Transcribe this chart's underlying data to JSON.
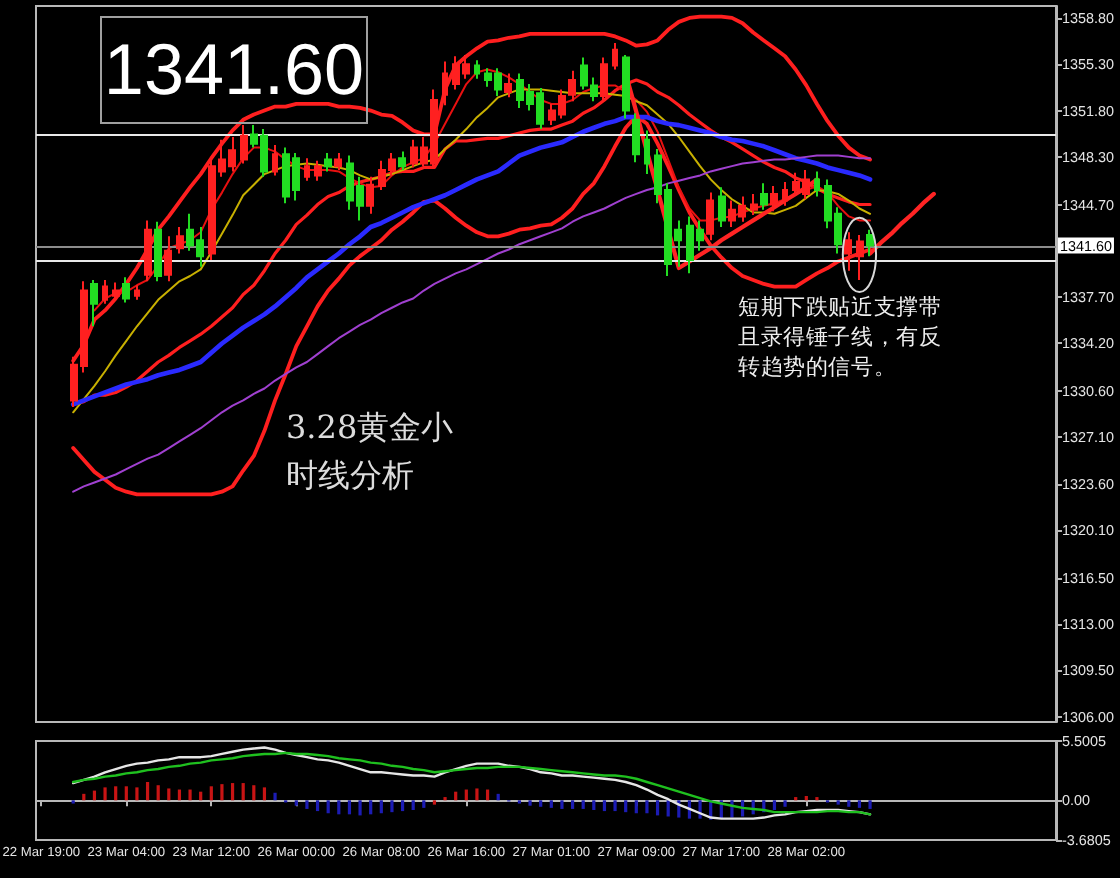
{
  "chart_data": [
    {
      "type": "candlestick",
      "categories": [
        null,
        null,
        null,
        null,
        null,
        null,
        null,
        null,
        null,
        null,
        null,
        null,
        null,
        null,
        null,
        null,
        null,
        null,
        null,
        null,
        null,
        null,
        null,
        null,
        null,
        null,
        null,
        null,
        null,
        null,
        null,
        null,
        null,
        null,
        null,
        null,
        null,
        null,
        null,
        null,
        null,
        null,
        null,
        null,
        null,
        null,
        null,
        null,
        null,
        null,
        null,
        null,
        null,
        null,
        null,
        null,
        null,
        null,
        null,
        null,
        null,
        null,
        null,
        null,
        null,
        null,
        null,
        null,
        null,
        null,
        null,
        null,
        null,
        null,
        null,
        null,
        null,
        null,
        null,
        null,
        null,
        null,
        null,
        null,
        null,
        null,
        null,
        null,
        null,
        null,
        null,
        null,
        null,
        null,
        null,
        null
      ],
      "ohlc": [
        null,
        null,
        null,
        [
          1329.9,
          1333.2,
          1329.4,
          1332.6
        ],
        [
          1332.5,
          1338.9,
          1332.0,
          1338.2
        ],
        [
          1338.7,
          1339.0,
          1335.5,
          1337.2
        ],
        [
          1337.5,
          1339.0,
          1337.2,
          1338.5
        ],
        [
          1337.8,
          1338.8,
          1337.5,
          1338.2
        ],
        [
          1338.7,
          1339.2,
          1337.3,
          1337.6
        ],
        [
          1337.8,
          1338.6,
          1337.5,
          1338.2
        ],
        [
          1339.4,
          1343.5,
          1338.9,
          1342.8
        ],
        [
          1342.8,
          1343.4,
          1338.9,
          1339.3
        ],
        [
          1339.4,
          1342.3,
          1338.9,
          1341.2
        ],
        [
          1341.4,
          1343.0,
          1341.0,
          1342.3
        ],
        [
          1342.8,
          1344.0,
          1341.2,
          1341.6
        ],
        [
          1342.0,
          1343.0,
          1340.0,
          1340.8
        ],
        [
          1341.0,
          1348.3,
          1340.5,
          1347.6
        ],
        [
          1347.2,
          1349.6,
          1346.8,
          1348.1
        ],
        [
          1347.6,
          1349.8,
          1347.2,
          1348.8
        ],
        [
          1348.1,
          1350.7,
          1347.8,
          1349.9
        ],
        [
          1350.0,
          1350.7,
          1349.0,
          1349.3
        ],
        [
          1349.9,
          1350.4,
          1346.8,
          1347.2
        ],
        [
          1347.2,
          1349.2,
          1346.9,
          1348.5
        ],
        [
          1348.5,
          1349.0,
          1344.8,
          1345.3
        ],
        [
          1348.2,
          1348.6,
          1345.0,
          1345.8
        ],
        [
          1346.8,
          1348.2,
          1346.5,
          1347.6
        ],
        [
          1346.9,
          1348.0,
          1346.5,
          1347.6
        ],
        [
          1348.1,
          1348.6,
          1347.2,
          1347.6
        ],
        [
          1347.6,
          1348.6,
          1347.3,
          1348.1
        ],
        [
          1347.8,
          1348.4,
          1344.3,
          1345.0
        ],
        [
          1346.1,
          1346.8,
          1343.5,
          1344.6
        ],
        [
          1344.6,
          1346.8,
          1344.0,
          1346.2
        ],
        [
          1346.1,
          1348.0,
          1345.8,
          1347.3
        ],
        [
          1347.3,
          1348.6,
          1346.9,
          1348.1
        ],
        [
          1348.2,
          1348.7,
          1347.3,
          1347.6
        ],
        [
          1347.8,
          1349.6,
          1347.5,
          1349.0
        ],
        [
          1347.8,
          1349.8,
          1347.6,
          1349.0
        ],
        [
          1347.8,
          1353.4,
          1347.5,
          1352.6
        ],
        [
          1353.0,
          1355.5,
          1352.2,
          1354.6
        ],
        [
          1353.8,
          1355.9,
          1353.4,
          1355.3
        ],
        [
          1354.6,
          1356.0,
          1354.2,
          1355.3
        ],
        [
          1355.2,
          1355.6,
          1354.2,
          1354.6
        ],
        [
          1354.6,
          1355.0,
          1353.6,
          1354.1
        ],
        [
          1354.6,
          1355.0,
          1352.9,
          1353.4
        ],
        [
          1353.2,
          1354.6,
          1352.8,
          1353.8
        ],
        [
          1354.1,
          1354.6,
          1352.0,
          1352.6
        ],
        [
          1353.2,
          1353.8,
          1351.8,
          1352.3
        ],
        [
          1353.1,
          1353.5,
          1350.4,
          1350.8
        ],
        [
          1351.1,
          1352.3,
          1350.7,
          1351.8
        ],
        [
          1351.5,
          1353.4,
          1351.2,
          1352.9
        ],
        [
          1353.0,
          1354.8,
          1352.5,
          1354.1
        ],
        [
          1355.2,
          1355.8,
          1353.4,
          1353.7
        ],
        [
          1353.7,
          1354.3,
          1352.5,
          1352.9
        ],
        [
          1352.9,
          1355.8,
          1352.6,
          1355.3
        ],
        [
          1355.2,
          1356.9,
          1354.9,
          1356.4
        ],
        [
          1355.8,
          1356.0,
          1351.2,
          1351.8
        ],
        [
          1351.1,
          1351.6,
          1347.9,
          1348.5
        ],
        [
          1349.6,
          1350.3,
          1347.0,
          1347.8
        ],
        [
          1348.4,
          1348.9,
          1344.8,
          1345.5
        ],
        [
          1345.8,
          1346.3,
          1339.3,
          1340.2
        ],
        [
          1342.8,
          1343.5,
          1340.0,
          1342.0
        ],
        [
          1343.1,
          1343.8,
          1339.5,
          1340.5
        ],
        [
          1342.8,
          1343.5,
          1341.2,
          1342.0
        ],
        [
          1342.5,
          1345.6,
          1342.0,
          1345.0
        ],
        [
          1345.3,
          1346.0,
          1343.0,
          1343.5
        ],
        [
          1343.5,
          1345.0,
          1343.0,
          1344.3
        ],
        [
          1343.8,
          1345.3,
          1343.4,
          1344.6
        ],
        [
          1344.3,
          1345.5,
          1343.9,
          1344.7
        ],
        [
          1345.5,
          1346.3,
          1344.3,
          1344.7
        ],
        [
          1344.7,
          1346.1,
          1344.2,
          1345.5
        ],
        [
          1345.0,
          1346.4,
          1344.6,
          1345.8
        ],
        [
          1345.8,
          1347.1,
          1345.4,
          1346.4
        ],
        [
          1345.5,
          1347.3,
          1345.1,
          1346.6
        ],
        [
          1346.6,
          1347.2,
          1345.3,
          1345.8
        ],
        [
          1346.1,
          1346.6,
          1342.9,
          1343.5
        ],
        [
          1344.0,
          1344.5,
          1341.0,
          1341.7
        ],
        [
          1341.0,
          1342.6,
          1339.7,
          1342.0
        ],
        [
          1340.8,
          1342.4,
          1339.0,
          1341.9
        ],
        [
          1342.4,
          1342.8,
          1340.8,
          1341.6
        ],
        null,
        null,
        null,
        null,
        null,
        null,
        null,
        null,
        null,
        null,
        null,
        null,
        null,
        null,
        null,
        null,
        null
      ],
      "colors": [
        null,
        null,
        null,
        "#ff2020",
        "#ff2020",
        "#22dd22",
        "#ff2020",
        "#ff2020",
        "#22dd22",
        "#ff2020",
        "#ff2020",
        "#22dd22",
        "#ff2020",
        "#ff2020",
        "#22dd22",
        "#22dd22",
        "#ff2020",
        "#ff2020",
        "#ff2020",
        "#ff2020",
        "#22dd22",
        "#22dd22",
        "#ff2020",
        "#22dd22",
        "#22dd22",
        "#ff2020",
        "#ff2020",
        "#22dd22",
        "#ff2020",
        "#22dd22",
        "#22dd22",
        "#ff2020",
        "#ff2020",
        "#ff2020",
        "#22dd22",
        "#ff2020",
        "#ff2020",
        "#ff2020",
        "#ff2020",
        "#ff2020",
        "#ff2020",
        "#22dd22",
        "#22dd22",
        "#22dd22",
        "#ff2020",
        "#22dd22",
        "#22dd22",
        "#22dd22",
        "#ff2020",
        "#ff2020",
        "#ff2020",
        "#22dd22",
        "#22dd22",
        "#ff2020",
        "#ff2020",
        "#22dd22",
        "#22dd22",
        "#22dd22",
        "#22dd22",
        "#22dd22",
        "#22dd22",
        "#22dd22",
        "#22dd22",
        "#ff2020",
        "#22dd22",
        "#ff2020",
        "#ff2020",
        "#ff2020",
        "#22dd22",
        "#ff2020",
        "#ff2020",
        "#ff2020",
        "#ff2020",
        "#22dd22",
        "#22dd22",
        "#22dd22",
        "#ff2020",
        "#ff2020",
        "#22dd22",
        null,
        null,
        null,
        null,
        null,
        null,
        null,
        null,
        null,
        null,
        null,
        null,
        null,
        null,
        null,
        null,
        null
      ],
      "ylim": [
        1305.6,
        1359.7
      ],
      "yticks": [
        {
          "value": 1306,
          "label": "1306.00"
        },
        {
          "value": 1309.5,
          "label": "1309.50"
        },
        {
          "value": 1313,
          "label": "1313.00"
        },
        {
          "value": 1316.5,
          "label": "1316.50"
        },
        {
          "value": 1320.1,
          "label": "1320.10"
        },
        {
          "value": 1323.6,
          "label": "1323.60"
        },
        {
          "value": 1327.1,
          "label": "1327.10"
        },
        {
          "value": 1330.6,
          "label": "1330.60"
        },
        {
          "value": 1334.2,
          "label": "1334.20"
        },
        {
          "value": 1337.7,
          "label": "1337.70"
        },
        {
          "value": 1344.7,
          "label": "1344.70"
        },
        {
          "value": 1348.3,
          "label": "1348.30"
        },
        {
          "value": 1351.8,
          "label": "1351.80"
        },
        {
          "value": 1355.3,
          "label": "1355.30"
        },
        {
          "value": 1358.8,
          "label": "1358.80"
        }
      ],
      "marker": "none",
      "series": [
        {
          "type": "line",
          "color": "#ff1f1f",
          "values": [
            null,
            null,
            null,
            1332.9,
            1334.1,
            1336.0,
            1336.7,
            1337.6,
            1338.7,
            1339.9,
            1341.3,
            1342.8,
            1343.8,
            1344.9,
            1346.0,
            1347.0,
            1348.2,
            1349.3,
            1350.3,
            1351.1,
            1351.5,
            1351.8,
            1352.1,
            1352.1,
            1352.3,
            1352.3,
            1352.3,
            1352.3,
            1352.1,
            1352.1,
            1352.0,
            1351.8,
            1351.5,
            1351.4,
            1350.9,
            1350.3,
            1350.0,
            1350.0,
            1353.4,
            1355.2,
            1355.9,
            1356.5,
            1357.0,
            1357.1,
            1357.3,
            1357.4,
            1357.6,
            1357.6,
            1357.6,
            1357.6,
            1357.6,
            1357.6,
            1357.6,
            1357.6,
            1357.4,
            1357.1,
            1356.7,
            1356.8,
            1357.1,
            1357.9,
            1358.5,
            1358.8,
            1358.9,
            1358.9,
            1358.9,
            1358.8,
            1358.4,
            1357.7,
            1357.1,
            1356.5,
            1355.9,
            1354.9,
            1353.7,
            1352.3,
            1351.0,
            1349.9,
            1349.0,
            1348.4,
            1348.1,
            null,
            null,
            null,
            null,
            null,
            null,
            null,
            null,
            null,
            null,
            null,
            null,
            null,
            null,
            null,
            null,
            null
          ]
        },
        {
          "type": "line",
          "color": "#ff1f1f",
          "values": [
            null,
            null,
            null,
            1329.6,
            1329.8,
            1330.3,
            1330.3,
            1330.5,
            1330.9,
            1331.4,
            1332.1,
            1332.8,
            1333.3,
            1333.9,
            1334.4,
            1334.9,
            1335.5,
            1336.2,
            1336.9,
            1337.9,
            1338.6,
            1339.7,
            1341.0,
            1342.0,
            1343.2,
            1343.9,
            1344.7,
            1345.3,
            1345.6,
            1346.1,
            1346.4,
            1346.6,
            1346.8,
            1347.1,
            1347.2,
            1347.2,
            1347.5,
            1347.5,
            1348.9,
            1349.5,
            1349.5,
            1349.6,
            1349.7,
            1349.7,
            1349.9,
            1350.1,
            1350.3,
            1350.4,
            1350.4,
            1350.7,
            1351.0,
            1351.6,
            1352.0,
            1352.6,
            1353.3,
            1353.8,
            1354.1,
            1353.8,
            1353.2,
            1352.8,
            1352.2,
            1351.5,
            1350.9,
            1350.3,
            1349.8,
            1349.4,
            1348.9,
            1348.4,
            1347.9,
            1347.5,
            1347.2,
            1346.7,
            1346.4,
            1345.9,
            1345.5,
            1345.2,
            1344.9,
            1344.7,
            1344.7,
            null,
            null,
            null,
            null,
            null,
            null,
            null,
            null,
            null,
            null,
            null,
            null,
            null,
            null,
            null,
            null,
            null
          ]
        },
        {
          "type": "line",
          "color": "#ff1f1f",
          "values": [
            null,
            null,
            null,
            1326.3,
            1325.4,
            1324.5,
            1323.9,
            1323.3,
            1323.0,
            1322.8,
            1322.8,
            1322.8,
            1322.8,
            1322.8,
            1322.8,
            1322.8,
            1322.8,
            1323.0,
            1323.4,
            1324.6,
            1325.7,
            1327.6,
            1329.9,
            1331.9,
            1334.0,
            1335.5,
            1337.0,
            1338.2,
            1339.1,
            1340.1,
            1340.8,
            1341.4,
            1342.0,
            1342.8,
            1343.4,
            1344.1,
            1344.9,
            1345.0,
            1344.4,
            1343.7,
            1343.1,
            1342.6,
            1342.3,
            1342.3,
            1342.5,
            1342.8,
            1342.9,
            1343.1,
            1343.2,
            1343.7,
            1344.4,
            1345.5,
            1346.3,
            1347.6,
            1349.1,
            1350.5,
            1351.4,
            1350.8,
            1349.3,
            1347.6,
            1345.8,
            1344.1,
            1342.8,
            1341.6,
            1340.7,
            1339.9,
            1339.3,
            1339.0,
            1338.7,
            1338.5,
            1338.5,
            1338.5,
            1339.0,
            1339.5,
            1339.9,
            1340.4,
            1340.7,
            1341.0,
            1341.3,
            null,
            null,
            null,
            null,
            null,
            null,
            null,
            null,
            null,
            null,
            null,
            null,
            null,
            null,
            null,
            null,
            null
          ]
        },
        {
          "type": "line",
          "color": "#e81010",
          "values": [
            null,
            null,
            null,
            null,
            null,
            1336.7,
            1337.6,
            1338.0,
            1338.1,
            1338.6,
            1339.0,
            1340.1,
            1341.4,
            1341.7,
            1342.0,
            1342.6,
            1344.3,
            1345.6,
            1347.0,
            1348.2,
            1349.0,
            1349.0,
            1348.7,
            1348.1,
            1347.6,
            1347.3,
            1347.3,
            1347.3,
            1347.2,
            1346.7,
            1346.3,
            1346.0,
            1346.1,
            1346.9,
            1347.5,
            1347.9,
            1348.2,
            1349.3,
            1350.8,
            1352.3,
            1353.8,
            1354.7,
            1354.9,
            1354.7,
            1354.3,
            1353.8,
            1353.2,
            1352.6,
            1352.3,
            1352.3,
            1352.6,
            1353.2,
            1353.5,
            1353.7,
            1353.7,
            1353.2,
            1352.6,
            1351.7,
            1350.2,
            1348.1,
            1346.0,
            1344.4,
            1343.5,
            1343.5,
            1343.7,
            1343.8,
            1344.1,
            1344.4,
            1344.6,
            1344.8,
            1345.1,
            1345.5,
            1345.8,
            1346.1,
            1345.6,
            1344.6,
            1343.8,
            1343.5,
            1343.5,
            null,
            null,
            null,
            null,
            null,
            null,
            null,
            null,
            null,
            null,
            null,
            null,
            null,
            null,
            null,
            null,
            null
          ]
        },
        {
          "type": "line",
          "color": "#c8b000",
          "values": [
            null,
            null,
            null,
            1329.0,
            1330.0,
            1331.0,
            1332.1,
            1333.3,
            1334.4,
            1335.5,
            1336.5,
            1337.5,
            1338.2,
            1338.9,
            1339.3,
            1339.8,
            1341.1,
            1342.5,
            1343.9,
            1345.4,
            1346.2,
            1347.0,
            1347.3,
            1347.6,
            1347.7,
            1347.8,
            1347.7,
            1347.6,
            1347.5,
            1347.3,
            1346.9,
            1346.6,
            1346.8,
            1347.0,
            1347.3,
            1347.6,
            1347.9,
            1348.1,
            1348.9,
            1349.6,
            1350.4,
            1351.3,
            1352.0,
            1352.8,
            1353.1,
            1353.4,
            1353.4,
            1353.4,
            1353.3,
            1353.2,
            1353.1,
            1353.1,
            1353.1,
            1353.1,
            1353.0,
            1352.9,
            1352.5,
            1352.2,
            1351.5,
            1350.8,
            1349.8,
            1348.7,
            1347.6,
            1346.6,
            1345.8,
            1345.1,
            1344.6,
            1344.1,
            1344.1,
            1344.0,
            1344.3,
            1344.6,
            1345.2,
            1345.8,
            1345.7,
            1345.5,
            1345.0,
            1344.4,
            1344.0,
            null,
            null,
            null,
            null,
            null,
            null,
            null,
            null,
            null,
            null,
            null,
            null,
            null,
            null,
            null,
            null,
            null
          ]
        },
        {
          "type": "line",
          "color": "#2a2aff",
          "values": [
            null,
            null,
            null,
            1329.6,
            1329.9,
            1330.2,
            1330.5,
            1330.8,
            1331.1,
            1331.3,
            1331.5,
            1331.8,
            1332.0,
            1332.2,
            1332.5,
            1332.8,
            1333.5,
            1334.2,
            1334.8,
            1335.4,
            1335.9,
            1336.4,
            1337.0,
            1337.7,
            1338.4,
            1339.2,
            1339.8,
            1340.4,
            1341.0,
            1341.7,
            1342.3,
            1343.0,
            1343.3,
            1343.7,
            1344.1,
            1344.5,
            1344.8,
            1345.1,
            1345.4,
            1345.8,
            1346.2,
            1346.6,
            1346.9,
            1347.2,
            1347.8,
            1348.4,
            1348.7,
            1349.0,
            1349.2,
            1349.4,
            1349.8,
            1350.2,
            1350.5,
            1350.8,
            1351.0,
            1351.3,
            1351.3,
            1351.3,
            1351.0,
            1350.8,
            1350.7,
            1350.5,
            1350.3,
            1350.1,
            1349.8,
            1349.6,
            1349.5,
            1349.3,
            1349.1,
            1348.8,
            1348.5,
            1348.2,
            1348.0,
            1347.8,
            1347.5,
            1347.3,
            1347.1,
            1346.9,
            1346.6,
            null,
            null,
            null,
            null,
            null,
            null,
            null,
            null,
            null,
            null,
            null,
            null,
            null,
            null,
            null,
            null,
            null
          ]
        },
        {
          "type": "line",
          "color": "#a040d0",
          "values": [
            null,
            null,
            null,
            1323.0,
            1323.4,
            1323.7,
            1324.0,
            1324.3,
            1324.7,
            1325.1,
            1325.5,
            1325.8,
            1326.3,
            1326.8,
            1327.3,
            1327.8,
            1328.4,
            1329.0,
            1329.5,
            1329.9,
            1330.4,
            1330.8,
            1331.4,
            1331.9,
            1332.4,
            1332.8,
            1333.4,
            1334.0,
            1334.6,
            1335.1,
            1335.6,
            1336.0,
            1336.5,
            1336.9,
            1337.3,
            1337.6,
            1338.2,
            1338.7,
            1339.1,
            1339.5,
            1339.8,
            1340.2,
            1340.6,
            1341.0,
            1341.3,
            1341.7,
            1342.0,
            1342.3,
            1342.6,
            1342.9,
            1343.4,
            1343.8,
            1344.1,
            1344.4,
            1344.8,
            1345.2,
            1345.5,
            1345.8,
            1346.0,
            1346.3,
            1346.5,
            1346.7,
            1346.9,
            1347.2,
            1347.4,
            1347.6,
            1347.8,
            1347.9,
            1348.0,
            1348.1,
            1348.1,
            1348.2,
            1348.3,
            1348.4,
            1348.4,
            1348.4,
            1348.3,
            1348.2,
            1348.2,
            null,
            null,
            null,
            null,
            null,
            null,
            null,
            null,
            null,
            null,
            null,
            null,
            null,
            null,
            null,
            null,
            null
          ]
        },
        {
          "type": "line",
          "color": "#ff2424",
          "values": [
            null,
            null,
            null,
            null,
            null,
            null,
            null,
            null,
            null,
            null,
            null,
            null,
            null,
            null,
            null,
            null,
            null,
            null,
            null,
            null,
            null,
            null,
            null,
            null,
            null,
            null,
            null,
            null,
            null,
            null,
            null,
            null,
            null,
            null,
            null,
            null,
            null,
            null,
            null,
            null,
            null,
            null,
            null,
            null,
            null,
            null,
            null,
            null,
            null,
            null,
            null,
            null,
            null,
            null,
            null,
            1354.6,
            1351.7,
            1348.7,
            1345.8,
            1342.8,
            1339.9,
            1340.4,
            1340.9,
            1341.4,
            1342.0,
            1342.5,
            1343.0,
            1343.5,
            1344.0,
            1344.5,
            1345.0,
            1345.5,
            1346.0,
            1346.6,
            null,
            null,
            null,
            null,
            1341.0,
            1341.8,
            1342.5,
            1343.3,
            1344.0,
            1344.8,
            1345.5,
            null,
            null,
            null,
            null,
            null,
            null,
            null,
            null,
            null,
            null,
            null
          ]
        }
      ],
      "ref_lines": [
        {
          "axis": "y",
          "value": 1350.0,
          "color": "#e8e8e8"
        },
        {
          "axis": "y",
          "value": 1341.6,
          "label": "1341.60",
          "color": "#8c8c8c"
        },
        {
          "axis": "y",
          "value": 1340.5,
          "color": "#e8e8e8"
        }
      ],
      "annotations": [
        "1341.60",
        "3.28黄金小时线分析",
        "短期下跌贴近支撑带且录得锤子线，有反转趋势的信号。"
      ]
    },
    {
      "type": "line",
      "categories": [
        "22 Mar 19:00",
        null,
        null,
        null,
        null,
        null,
        null,
        null,
        "23 Mar 04:00",
        null,
        null,
        null,
        null,
        null,
        null,
        null,
        "23 Mar 12:00",
        null,
        null,
        null,
        null,
        null,
        null,
        null,
        "26 Mar 00:00",
        null,
        null,
        null,
        null,
        null,
        null,
        null,
        "26 Mar 08:00",
        null,
        null,
        null,
        null,
        null,
        null,
        null,
        "26 Mar 16:00",
        null,
        null,
        null,
        null,
        null,
        null,
        null,
        "27 Mar 01:00",
        null,
        null,
        null,
        null,
        null,
        null,
        null,
        "27 Mar 09:00",
        null,
        null,
        null,
        null,
        null,
        null,
        null,
        "27 Mar 17:00",
        null,
        null,
        null,
        null,
        null,
        null,
        null,
        "28 Mar 02:00",
        null,
        null,
        null,
        null,
        null,
        null,
        null,
        null,
        null,
        null,
        null,
        null,
        null,
        null,
        null,
        null,
        null,
        null,
        null,
        null,
        null,
        null,
        null
      ],
      "ylim": [
        -3.6805,
        5.5005
      ],
      "yticks": [
        -3.6805,
        {
          "value": 0,
          "label": "0.00"
        },
        5.5005
      ],
      "marker": "none",
      "series": [
        {
          "type": "bar",
          "colors": [
            null,
            null,
            null,
            "#1c1cb4",
            "#c81414",
            "#c81414",
            "#c81414",
            "#c81414",
            "#c81414",
            "#c81414",
            "#c81414",
            "#c81414",
            "#c81414",
            "#c81414",
            "#c81414",
            "#c81414",
            "#c81414",
            "#c81414",
            "#c81414",
            "#c81414",
            "#c81414",
            "#c81414",
            "#1c1cb4",
            "#1c1cb4",
            "#1c1cb4",
            "#1c1cb4",
            "#1c1cb4",
            "#1c1cb4",
            "#1c1cb4",
            "#1c1cb4",
            "#1c1cb4",
            "#1c1cb4",
            "#1c1cb4",
            "#1c1cb4",
            "#1c1cb4",
            "#1c1cb4",
            "#1c1cb4",
            "#c81414",
            "#c81414",
            "#c81414",
            "#c81414",
            "#c81414",
            "#c81414",
            "#1c1cb4",
            "#1c1cb4",
            "#1c1cb4",
            "#1c1cb4",
            "#1c1cb4",
            "#1c1cb4",
            "#1c1cb4",
            "#1c1cb4",
            "#1c1cb4",
            "#1c1cb4",
            "#1c1cb4",
            "#1c1cb4",
            "#1c1cb4",
            "#1c1cb4",
            "#1c1cb4",
            "#1c1cb4",
            "#1c1cb4",
            "#1c1cb4",
            "#1c1cb4",
            "#1c1cb4",
            "#1c1cb4",
            "#1c1cb4",
            "#1c1cb4",
            "#1c1cb4",
            "#1c1cb4",
            "#1c1cb4",
            "#1c1cb4",
            "#1c1cb4",
            "#c81414",
            "#c81414",
            "#c81414",
            "#1c1cb4",
            "#1c1cb4",
            "#1c1cb4",
            "#1c1cb4",
            "#1c1cb4",
            null,
            null,
            null,
            null,
            null,
            null,
            null,
            null,
            null,
            null,
            null,
            null,
            null,
            null,
            null,
            null,
            null
          ],
          "values": [
            null,
            null,
            null,
            -0.3,
            0.6,
            0.9,
            1.2,
            1.3,
            1.3,
            1.2,
            1.7,
            1.4,
            1.1,
            1.0,
            1.0,
            0.8,
            1.3,
            1.5,
            1.6,
            1.6,
            1.4,
            1.2,
            0.7,
            -0.2,
            -0.5,
            -0.8,
            -1.0,
            -1.2,
            -1.3,
            -1.3,
            -1.4,
            -1.3,
            -1.2,
            -1.1,
            -1.0,
            -0.9,
            -0.7,
            -0.4,
            0.3,
            0.8,
            1.0,
            1.1,
            1.0,
            0.6,
            -0.1,
            -0.3,
            -0.5,
            -0.6,
            -0.7,
            -0.8,
            -0.8,
            -0.8,
            -0.9,
            -1.0,
            -1.0,
            -1.1,
            -1.2,
            -1.2,
            -1.4,
            -1.5,
            -1.6,
            -1.7,
            -1.7,
            -1.8,
            -1.7,
            -1.6,
            -1.5,
            -1.3,
            -1.1,
            -0.9,
            -0.6,
            0.3,
            0.4,
            0.3,
            -0.2,
            -0.4,
            -0.6,
            -0.7,
            -0.8,
            null,
            null,
            null,
            null,
            null,
            null,
            null,
            null,
            null,
            null,
            null,
            null,
            null,
            null,
            null,
            null,
            null
          ]
        },
        {
          "type": "line",
          "color": "#e6e6e6",
          "values": [
            null,
            null,
            null,
            1.6,
            1.9,
            2.2,
            2.6,
            2.9,
            3.2,
            3.4,
            3.5,
            3.7,
            3.8,
            4.0,
            4.0,
            4.0,
            4.1,
            4.3,
            4.5,
            4.7,
            4.8,
            4.9,
            4.7,
            4.4,
            4.2,
            4.0,
            3.8,
            3.7,
            3.5,
            3.2,
            2.9,
            2.6,
            2.6,
            2.5,
            2.4,
            2.3,
            2.3,
            2.2,
            2.6,
            2.9,
            3.2,
            3.4,
            3.4,
            3.4,
            3.2,
            3.1,
            2.9,
            2.6,
            2.5,
            2.3,
            2.3,
            2.2,
            2.1,
            2.0,
            1.9,
            1.7,
            1.4,
            1.0,
            0.5,
            0.1,
            -0.4,
            -0.8,
            -1.2,
            -1.6,
            -1.7,
            -1.7,
            -1.7,
            -1.7,
            -1.6,
            -1.4,
            -1.3,
            -1.1,
            -1.0,
            -0.9,
            -0.9,
            -0.9,
            -1.0,
            -1.1,
            -1.3,
            null,
            null,
            null,
            null,
            null,
            null,
            null,
            null,
            null,
            null,
            null,
            null,
            null,
            null,
            null,
            null,
            null
          ]
        },
        {
          "type": "line",
          "color": "#1fc01f",
          "values": [
            null,
            null,
            null,
            1.7,
            1.9,
            2.0,
            2.2,
            2.3,
            2.5,
            2.6,
            2.8,
            2.9,
            3.1,
            3.2,
            3.4,
            3.5,
            3.7,
            3.8,
            3.9,
            4.1,
            4.2,
            4.3,
            4.3,
            4.4,
            4.3,
            4.3,
            4.2,
            4.1,
            3.9,
            3.8,
            3.7,
            3.5,
            3.4,
            3.2,
            3.1,
            2.9,
            2.8,
            2.6,
            2.7,
            2.8,
            2.9,
            3.0,
            3.0,
            3.1,
            3.1,
            3.1,
            3.0,
            2.9,
            2.8,
            2.7,
            2.6,
            2.5,
            2.4,
            2.3,
            2.3,
            2.2,
            2.0,
            1.7,
            1.4,
            1.1,
            0.8,
            0.5,
            0.2,
            -0.1,
            -0.3,
            -0.5,
            -0.7,
            -0.8,
            -0.9,
            -1.1,
            -1.1,
            -1.1,
            -1.1,
            -1.1,
            -1.0,
            -1.0,
            -1.1,
            -1.1,
            -1.3,
            null,
            null,
            null,
            null,
            null,
            null,
            null,
            null,
            null,
            null,
            null,
            null,
            null,
            null,
            null,
            null,
            null
          ]
        }
      ]
    }
  ]
}
